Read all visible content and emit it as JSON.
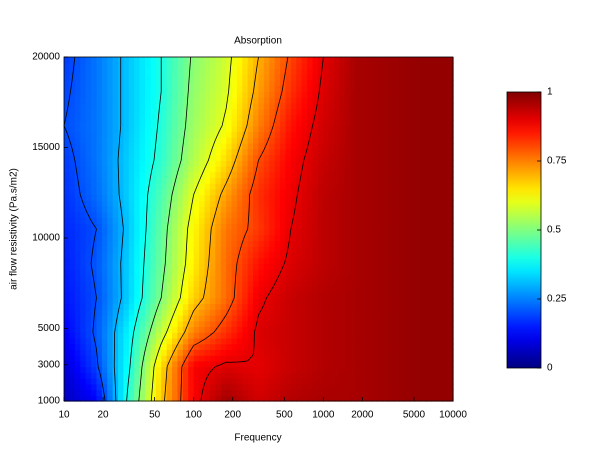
{
  "chart_data": {
    "type": "contour",
    "title": "Absorption",
    "x_label": "Frequency",
    "y_label": "air flow resistivity (Pa.s/m2)",
    "x_scale": "log",
    "xlim": [
      10,
      10000
    ],
    "xticks": [
      10,
      20,
      50,
      100,
      200,
      500,
      1000,
      2000,
      5000,
      10000
    ],
    "ylim": [
      1000,
      20000
    ],
    "yticks": [
      1000,
      3000,
      5000,
      10000,
      15000,
      20000
    ],
    "colormap": "jet",
    "clim": [
      0,
      1
    ],
    "cticks": [
      0,
      0.25,
      0.5,
      0.75,
      1
    ],
    "contour_levels": [
      0.2,
      0.3,
      0.4,
      0.5,
      0.6,
      0.7,
      0.8,
      0.9
    ],
    "contour_color": "#000000",
    "x": [
      10,
      17.8,
      31.6,
      56.2,
      100,
      178,
      316,
      562,
      1000,
      1778,
      3162,
      5623,
      10000
    ],
    "y": [
      1000,
      2900,
      4800,
      6700,
      8600,
      10500,
      12400,
      14300,
      16200,
      18100,
      20000
    ],
    "z": [
      [
        0.06,
        0.12,
        0.42,
        0.68,
        0.88,
        0.97,
        0.92,
        0.95,
        0.96,
        0.96,
        0.97,
        0.98,
        0.98
      ],
      [
        0.08,
        0.19,
        0.39,
        0.66,
        0.88,
        0.91,
        0.9,
        0.93,
        0.95,
        0.96,
        0.97,
        0.98,
        0.98
      ],
      [
        0.12,
        0.21,
        0.37,
        0.57,
        0.75,
        0.83,
        0.91,
        0.93,
        0.95,
        0.96,
        0.97,
        0.98,
        0.98
      ],
      [
        0.14,
        0.2,
        0.33,
        0.5,
        0.67,
        0.77,
        0.89,
        0.93,
        0.95,
        0.96,
        0.97,
        0.98,
        0.98
      ],
      [
        0.15,
        0.21,
        0.33,
        0.48,
        0.64,
        0.77,
        0.86,
        0.91,
        0.94,
        0.96,
        0.97,
        0.98,
        0.98
      ],
      [
        0.16,
        0.2,
        0.32,
        0.47,
        0.63,
        0.76,
        0.82,
        0.9,
        0.94,
        0.96,
        0.97,
        0.98,
        0.98
      ],
      [
        0.17,
        0.23,
        0.33,
        0.45,
        0.6,
        0.72,
        0.83,
        0.89,
        0.94,
        0.96,
        0.97,
        0.98,
        0.98
      ],
      [
        0.18,
        0.24,
        0.33,
        0.42,
        0.55,
        0.66,
        0.8,
        0.88,
        0.93,
        0.96,
        0.97,
        0.98,
        0.98
      ],
      [
        0.2,
        0.24,
        0.32,
        0.41,
        0.53,
        0.61,
        0.75,
        0.86,
        0.92,
        0.96,
        0.97,
        0.98,
        0.98
      ],
      [
        0.19,
        0.24,
        0.32,
        0.4,
        0.52,
        0.59,
        0.72,
        0.83,
        0.91,
        0.96,
        0.97,
        0.98,
        0.98
      ],
      [
        0.18,
        0.24,
        0.32,
        0.4,
        0.51,
        0.58,
        0.7,
        0.81,
        0.9,
        0.96,
        0.97,
        0.98,
        0.98
      ]
    ]
  }
}
